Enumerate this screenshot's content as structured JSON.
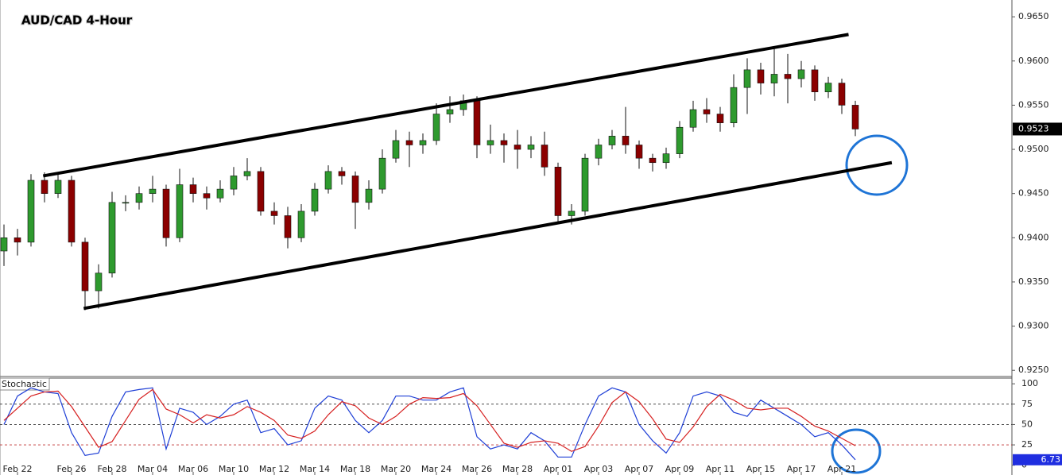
{
  "chart_data": [
    {
      "type": "candlestick",
      "title": "AUD/CAD 4-Hour",
      "categories": [
        null,
        "Feb 22",
        null,
        null,
        null,
        "Feb 26",
        null,
        null,
        "Feb 28",
        null,
        null,
        "Mar 04",
        null,
        null,
        "Mar 06",
        null,
        null,
        "Mar 10",
        null,
        null,
        "Mar 12",
        null,
        null,
        "Mar 14",
        null,
        null,
        "Mar 18",
        null,
        null,
        "Mar 20",
        null,
        null,
        "Mar 24",
        null,
        null,
        "Mar 26",
        null,
        null,
        "Mar 28",
        null,
        null,
        "Apr 01",
        null,
        null,
        "Apr 03",
        null,
        null,
        "Apr 07",
        null,
        null,
        "Apr 09",
        null,
        null,
        "Apr 11",
        null,
        null,
        "Apr 15",
        null,
        null,
        "Apr 17",
        null,
        null,
        "Apr 21",
        null
      ],
      "open": [
        0.9385,
        0.94,
        0.9395,
        0.9465,
        0.945,
        0.9465,
        0.9395,
        0.934,
        0.936,
        0.944,
        0.944,
        0.945,
        0.9455,
        0.94,
        0.946,
        0.945,
        0.9445,
        0.9455,
        0.947,
        0.9475,
        0.943,
        0.9425,
        0.94,
        0.943,
        0.9455,
        0.9475,
        0.947,
        0.944,
        0.9455,
        0.949,
        0.951,
        0.9505,
        0.951,
        0.954,
        0.9545,
        0.9555,
        0.9505,
        0.951,
        0.9505,
        0.95,
        0.9505,
        0.948,
        0.9425,
        0.943,
        0.949,
        0.9505,
        0.9515,
        0.9505,
        0.949,
        0.9485,
        0.9495,
        0.9525,
        0.9545,
        0.954,
        0.953,
        0.957,
        0.959,
        0.9575,
        0.9585,
        0.958,
        0.959,
        0.9565,
        0.9575,
        0.955
      ],
      "high": [
        0.9415,
        0.941,
        0.9472,
        0.9474,
        0.9472,
        0.947,
        0.94,
        0.937,
        0.9452,
        0.9448,
        0.9458,
        0.947,
        0.946,
        0.9478,
        0.9468,
        0.9458,
        0.9465,
        0.948,
        0.949,
        0.948,
        0.944,
        0.9435,
        0.9438,
        0.9462,
        0.9482,
        0.948,
        0.9475,
        0.9465,
        0.95,
        0.9522,
        0.952,
        0.9518,
        0.9552,
        0.956,
        0.9562,
        0.956,
        0.9528,
        0.9518,
        0.9522,
        0.9515,
        0.952,
        0.9485,
        0.9438,
        0.9495,
        0.9512,
        0.9522,
        0.9548,
        0.951,
        0.9495,
        0.9502,
        0.9532,
        0.9555,
        0.9558,
        0.9548,
        0.9585,
        0.9603,
        0.9598,
        0.9614,
        0.9608,
        0.96,
        0.9595,
        0.9582,
        0.958,
        0.9555
      ],
      "low": [
        0.9368,
        0.938,
        0.939,
        0.944,
        0.9445,
        0.939,
        0.9318,
        0.932,
        0.9355,
        0.943,
        0.9432,
        0.944,
        0.939,
        0.9395,
        0.944,
        0.9432,
        0.944,
        0.9448,
        0.9465,
        0.9425,
        0.9415,
        0.9388,
        0.9395,
        0.9425,
        0.945,
        0.946,
        0.941,
        0.9432,
        0.945,
        0.9485,
        0.948,
        0.9495,
        0.9505,
        0.953,
        0.9538,
        0.949,
        0.9495,
        0.9485,
        0.9478,
        0.949,
        0.947,
        0.9418,
        0.9415,
        0.9425,
        0.9482,
        0.95,
        0.9495,
        0.9478,
        0.9475,
        0.9478,
        0.949,
        0.952,
        0.953,
        0.952,
        0.9525,
        0.954,
        0.9562,
        0.956,
        0.9552,
        0.957,
        0.9555,
        0.9558,
        0.954,
        0.9515
      ],
      "close": [
        0.94,
        0.9395,
        0.9465,
        0.945,
        0.9465,
        0.9395,
        0.934,
        0.936,
        0.944,
        0.944,
        0.945,
        0.9455,
        0.94,
        0.946,
        0.945,
        0.9445,
        0.9455,
        0.947,
        0.9475,
        0.943,
        0.9425,
        0.94,
        0.943,
        0.9455,
        0.9475,
        0.947,
        0.944,
        0.9455,
        0.949,
        0.951,
        0.9505,
        0.951,
        0.954,
        0.9545,
        0.9555,
        0.9505,
        0.951,
        0.9505,
        0.95,
        0.9505,
        0.948,
        0.9425,
        0.943,
        0.949,
        0.9505,
        0.9515,
        0.9505,
        0.949,
        0.9485,
        0.9495,
        0.9525,
        0.9545,
        0.954,
        0.953,
        0.957,
        0.959,
        0.9575,
        0.9585,
        0.958,
        0.959,
        0.9565,
        0.9575,
        0.955,
        0.9523
      ],
      "up_color": "#2e9a2e",
      "down_color": "#8b0000",
      "ylim": [
        0.9243,
        0.9669
      ],
      "yticks": [
        {
          "value": 0.925,
          "label": "0.9250"
        },
        {
          "value": 0.93,
          "label": "0.9300"
        },
        {
          "value": 0.935,
          "label": "0.9350"
        },
        {
          "value": 0.94,
          "label": "0.9400"
        },
        {
          "value": 0.945,
          "label": "0.9450"
        },
        {
          "value": 0.95,
          "label": "0.9500"
        },
        {
          "value": 0.955,
          "label": "0.9550"
        },
        {
          "value": 0.96,
          "label": "0.9600"
        },
        {
          "value": 0.965,
          "label": "0.9650"
        }
      ],
      "trendlines": [
        {
          "x": [
            2.9,
            62.5
          ],
          "y": [
            0.947,
            0.963
          ]
        },
        {
          "x": [
            5.9,
            65.7
          ],
          "y": [
            0.932,
            0.9485
          ]
        }
      ]
    },
    {
      "type": "line",
      "title": "Stochastic",
      "series": [
        {
          "color": "#1f3fd6",
          "values": [
            50,
            85,
            95,
            90,
            88,
            40,
            12,
            15,
            60,
            90,
            93,
            95,
            20,
            70,
            65,
            50,
            60,
            75,
            80,
            40,
            45,
            25,
            30,
            70,
            85,
            80,
            55,
            40,
            55,
            85,
            85,
            80,
            80,
            90,
            95,
            35,
            20,
            25,
            20,
            40,
            30,
            10,
            10,
            50,
            85,
            95,
            90,
            50,
            30,
            15,
            40,
            85,
            90,
            85,
            65,
            60,
            80,
            70,
            60,
            50,
            35,
            40,
            25,
            6.73
          ]
        },
        {
          "color": "#d62020",
          "values": [
            55,
            70,
            85,
            90,
            91,
            72,
            47,
            22,
            29,
            55,
            81,
            93,
            69,
            62,
            52,
            62,
            58,
            62,
            72,
            65,
            55,
            37,
            33,
            42,
            62,
            78,
            73,
            58,
            50,
            60,
            75,
            83,
            82,
            83,
            88,
            73,
            50,
            27,
            22,
            28,
            30,
            27,
            17,
            23,
            48,
            77,
            90,
            78,
            57,
            32,
            28,
            47,
            72,
            87,
            80,
            70,
            68,
            70,
            70,
            60,
            48,
            42,
            33,
            24
          ]
        }
      ],
      "ylim": [
        -12,
        107
      ],
      "yticks": [
        0,
        25,
        50,
        75,
        100
      ]
    }
  ]
}
